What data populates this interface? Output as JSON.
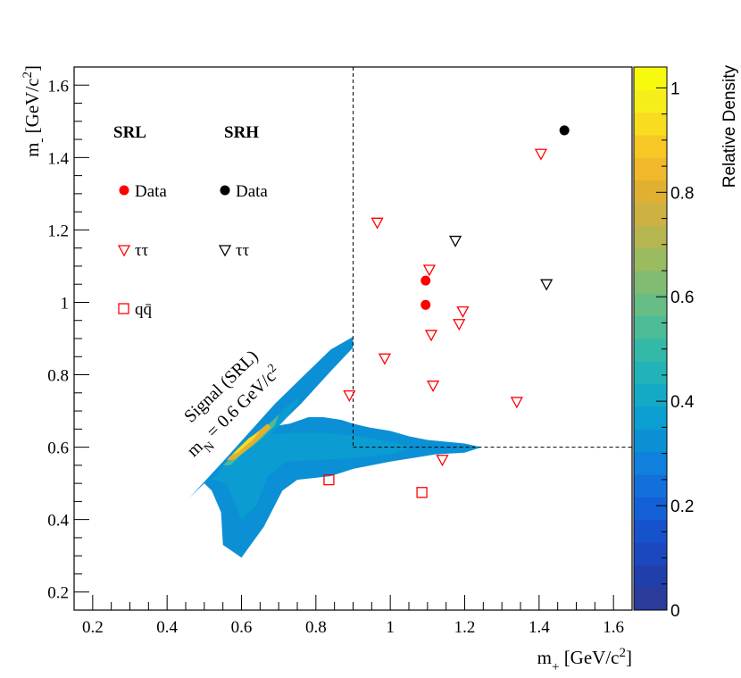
{
  "chart_data": {
    "type": "scatter",
    "xlabel": "m+ [GeV/c2]",
    "ylabel": "m- [GeV/c2]",
    "xlim": [
      0.15,
      1.65
    ],
    "ylim": [
      0.15,
      1.65
    ],
    "x_ticks": [
      0.2,
      0.4,
      0.6,
      0.8,
      1,
      1.2,
      1.4,
      1.6
    ],
    "y_ticks": [
      0.2,
      0.4,
      0.6,
      0.8,
      1,
      1.2,
      1.4,
      1.6
    ],
    "x_tick_labels": [
      "0.2",
      "0.4",
      "0.6",
      "0.8",
      "1",
      "1.2",
      "1.4",
      "1.6"
    ],
    "y_tick_labels": [
      "0.2",
      "0.4",
      "0.6",
      "0.8",
      "1",
      "1.2",
      "1.4",
      "1.6"
    ],
    "region_boundary": {
      "x_min": 0.9,
      "y_min": 0.6
    },
    "series": [
      {
        "name": "SRL Data",
        "marker": "circle",
        "color": "#ff0000",
        "points": [
          [
            1.095,
            0.993
          ],
          [
            1.095,
            1.06
          ]
        ]
      },
      {
        "name": "SRH Data",
        "marker": "circle",
        "color": "#000000",
        "points": [
          [
            1.468,
            1.475
          ]
        ]
      },
      {
        "name": "SRL tautau",
        "marker": "triangle-down",
        "color": "#ff0000",
        "points": [
          [
            0.89,
            0.743
          ],
          [
            0.965,
            1.22
          ],
          [
            0.985,
            0.845
          ],
          [
            1.105,
            1.09
          ],
          [
            1.11,
            0.91
          ],
          [
            1.115,
            0.77
          ],
          [
            1.14,
            0.565
          ],
          [
            1.185,
            0.94
          ],
          [
            1.195,
            0.975
          ],
          [
            1.34,
            0.725
          ],
          [
            1.405,
            1.41
          ]
        ]
      },
      {
        "name": "SRH tautau",
        "marker": "triangle-down",
        "color": "#000000",
        "points": [
          [
            1.175,
            1.17
          ],
          [
            1.42,
            1.05
          ]
        ]
      },
      {
        "name": "SRL qqbar",
        "marker": "square",
        "color": "#ff0000",
        "points": [
          [
            0.835,
            0.51
          ],
          [
            1.085,
            0.475
          ]
        ]
      }
    ],
    "signal_density": {
      "label_line1": "Signal (SRL)",
      "label_line2": "mN = 0.6 GeV/c2",
      "outer_contour": [
        [
          0.46,
          0.46
        ],
        [
          0.55,
          0.56
        ],
        [
          0.62,
          0.64
        ],
        [
          0.69,
          0.72
        ],
        [
          0.77,
          0.8
        ],
        [
          0.84,
          0.87
        ],
        [
          0.9,
          0.905
        ],
        [
          0.9,
          0.875
        ],
        [
          0.84,
          0.81
        ],
        [
          0.76,
          0.72
        ],
        [
          0.7,
          0.66
        ],
        [
          0.73,
          0.665
        ],
        [
          0.78,
          0.683
        ],
        [
          0.82,
          0.683
        ],
        [
          0.87,
          0.675
        ],
        [
          0.9,
          0.665
        ],
        [
          0.94,
          0.655
        ],
        [
          1.0,
          0.645
        ],
        [
          1.05,
          0.63
        ],
        [
          1.1,
          0.62
        ],
        [
          1.15,
          0.615
        ],
        [
          1.2,
          0.61
        ],
        [
          1.245,
          0.6
        ],
        [
          1.2,
          0.585
        ],
        [
          1.12,
          0.58
        ],
        [
          1.0,
          0.56
        ],
        [
          0.9,
          0.54
        ],
        [
          0.84,
          0.52
        ],
        [
          0.75,
          0.51
        ],
        [
          0.71,
          0.48
        ],
        [
          0.66,
          0.38
        ],
        [
          0.6,
          0.295
        ],
        [
          0.55,
          0.33
        ],
        [
          0.545,
          0.42
        ],
        [
          0.52,
          0.48
        ],
        [
          0.5,
          0.5
        ]
      ],
      "mid_contour": [
        [
          0.52,
          0.51
        ],
        [
          0.6,
          0.6
        ],
        [
          0.67,
          0.66
        ],
        [
          0.72,
          0.71
        ],
        [
          0.76,
          0.74
        ],
        [
          0.72,
          0.68
        ],
        [
          0.68,
          0.635
        ],
        [
          0.74,
          0.64
        ],
        [
          0.82,
          0.64
        ],
        [
          0.92,
          0.63
        ],
        [
          1.0,
          0.615
        ],
        [
          1.06,
          0.6
        ],
        [
          1.0,
          0.58
        ],
        [
          0.9,
          0.57
        ],
        [
          0.8,
          0.565
        ],
        [
          0.72,
          0.56
        ],
        [
          0.67,
          0.52
        ],
        [
          0.64,
          0.44
        ],
        [
          0.6,
          0.4
        ],
        [
          0.58,
          0.45
        ],
        [
          0.56,
          0.5
        ]
      ],
      "inner_contour": [
        [
          0.55,
          0.55
        ],
        [
          0.6,
          0.6
        ],
        [
          0.66,
          0.65
        ],
        [
          0.7,
          0.69
        ],
        [
          0.69,
          0.66
        ],
        [
          0.65,
          0.62
        ],
        [
          0.6,
          0.58
        ],
        [
          0.57,
          0.55
        ]
      ],
      "core_contour": [
        [
          0.56,
          0.565
        ],
        [
          0.61,
          0.615
        ],
        [
          0.67,
          0.665
        ],
        [
          0.68,
          0.655
        ],
        [
          0.63,
          0.605
        ],
        [
          0.58,
          0.565
        ]
      ],
      "peak_contour": [
        [
          0.575,
          0.58
        ],
        [
          0.62,
          0.625
        ],
        [
          0.65,
          0.645
        ],
        [
          0.63,
          0.62
        ],
        [
          0.59,
          0.585
        ]
      ]
    },
    "legend": {
      "srl_header": "SRL",
      "srh_header": "SRH",
      "data_label": "Data",
      "tautau_label": "ττ",
      "qq_label": "qq̄"
    },
    "colorbar": {
      "title": "Relative Density",
      "range": [
        0,
        1.04
      ],
      "ticks": [
        0,
        0.2,
        0.4,
        0.6,
        0.8,
        1
      ],
      "tick_labels": [
        "0",
        "0.2",
        "0.4",
        "0.6",
        "0.8",
        "1"
      ],
      "colors": [
        "#2a3b9a",
        "#203fab",
        "#1c48bf",
        "#1752cd",
        "#1460d6",
        "#126fdc",
        "#0f80dc",
        "#0b90d6",
        "#0b9ed0",
        "#14aac6",
        "#22b3b8",
        "#34b8a8",
        "#4dbb96",
        "#66bd85",
        "#80bd72",
        "#9bbb61",
        "#b6b651",
        "#cdb142",
        "#e0b033",
        "#f0b82a",
        "#f7c824",
        "#f8dc1f",
        "#f6ee1a",
        "#f8fa0e"
      ]
    }
  }
}
